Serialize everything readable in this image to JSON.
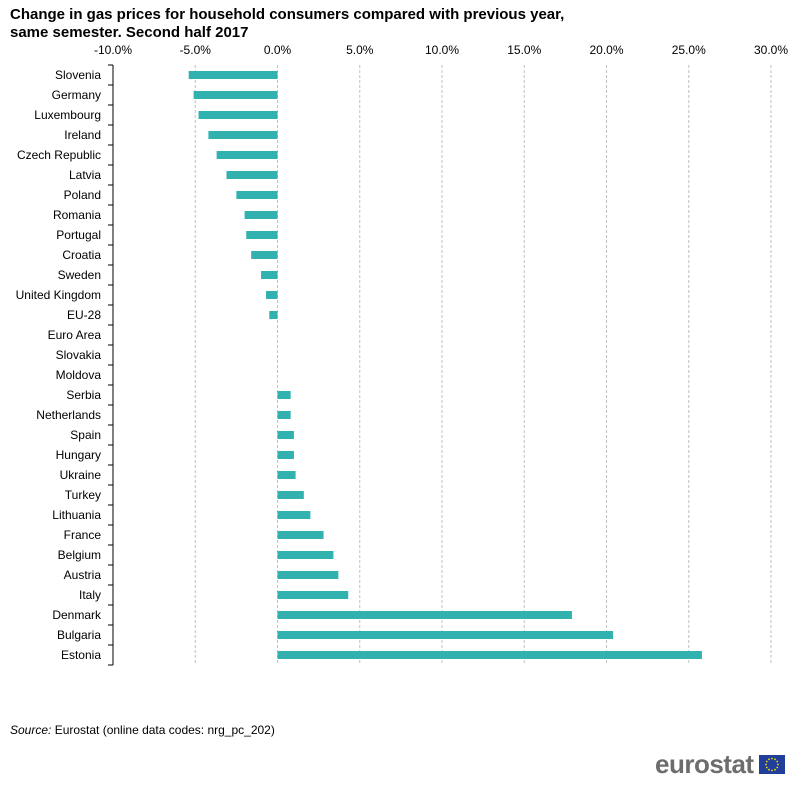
{
  "chart_data": {
    "type": "bar",
    "orientation": "horizontal",
    "title_line1": "Change in gas prices for household consumers compared with previous year,",
    "title_line2": "same semester.  Second half 2017",
    "categories": [
      "Slovenia",
      "Germany",
      "Luxembourg",
      "Ireland",
      "Czech Republic",
      "Latvia",
      "Poland",
      "Romania",
      "Portugal",
      "Croatia",
      "Sweden",
      "United Kingdom",
      "EU-28",
      "Euro Area",
      "Slovakia",
      "Moldova",
      "Serbia",
      "Netherlands",
      "Spain",
      "Hungary",
      "Ukraine",
      "Turkey",
      "Lithuania",
      "France",
      "Belgium",
      "Austria",
      "Italy",
      "Denmark",
      "Bulgaria",
      "Estonia"
    ],
    "values": [
      -5.4,
      -5.1,
      -4.8,
      -4.2,
      -3.7,
      -3.1,
      -2.5,
      -2.0,
      -1.9,
      -1.6,
      -1.0,
      -0.7,
      -0.5,
      0.0,
      0.0,
      0.0,
      0.8,
      0.8,
      1.0,
      1.0,
      1.1,
      1.6,
      2.0,
      2.8,
      3.4,
      3.7,
      4.3,
      17.9,
      20.4,
      25.8
    ],
    "xlim": [
      -10,
      30
    ],
    "xticks": [
      "-10.0%",
      "-5.0%",
      "0.0%",
      "5.0%",
      "10.0%",
      "15.0%",
      "20.0%",
      "25.0%",
      "30.0%"
    ],
    "xtick_values": [
      -10,
      -5,
      0,
      5,
      10,
      15,
      20,
      25,
      30
    ],
    "xlabel": "",
    "ylabel": "",
    "grid": "vertical dashed",
    "bar_color": "#32b2af"
  },
  "source": {
    "label": "Source:",
    "text": " Eurostat (online data codes: nrg_pc_202)"
  },
  "logo": {
    "text": "eurostat"
  }
}
